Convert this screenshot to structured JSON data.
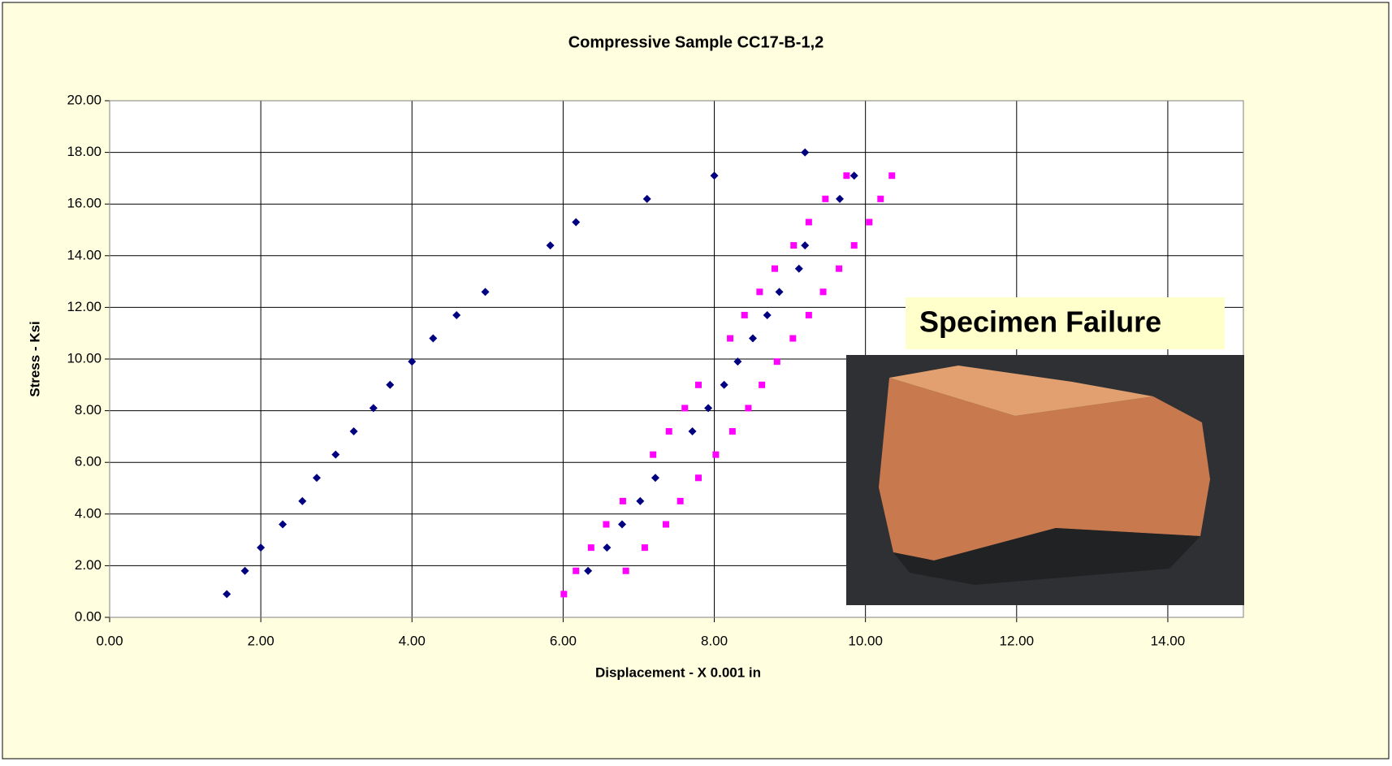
{
  "chart_data": {
    "type": "scatter",
    "title": "Compressive Sample CC17-B-1,2",
    "x_label": "Displacement - X 0.001 in",
    "y_label": "Stress - Ksi",
    "annotation": "Specimen Failure",
    "xlim": [
      0,
      15
    ],
    "ylim": [
      0,
      20
    ],
    "xticks": [
      {
        "value": 0,
        "label": "0.00"
      },
      {
        "value": 2,
        "label": "2.00"
      },
      {
        "value": 4,
        "label": "4.00"
      },
      {
        "value": 6,
        "label": "6.00"
      },
      {
        "value": 8,
        "label": "8.00"
      },
      {
        "value": 10,
        "label": "10.00"
      },
      {
        "value": 12,
        "label": "12.00"
      },
      {
        "value": 14,
        "label": "14.00"
      }
    ],
    "yticks": [
      {
        "value": 0,
        "label": "0.00"
      },
      {
        "value": 2,
        "label": "2.00"
      },
      {
        "value": 4,
        "label": "4.00"
      },
      {
        "value": 6,
        "label": "6.00"
      },
      {
        "value": 8,
        "label": "8.00"
      },
      {
        "value": 10,
        "label": "10.00"
      },
      {
        "value": 12,
        "label": "12.00"
      },
      {
        "value": 14,
        "label": "14.00"
      },
      {
        "value": 16,
        "label": "16.00"
      },
      {
        "value": 18,
        "label": "18.00"
      },
      {
        "value": 20,
        "label": "20.00"
      }
    ],
    "grid": true,
    "series": [
      {
        "color": "#000080",
        "marker": "diamond",
        "x": [
          1.55,
          1.79,
          2.0,
          2.29,
          2.55,
          2.74,
          2.99,
          3.23,
          3.49,
          3.71,
          4.0,
          4.28,
          4.59,
          4.97,
          5.83,
          6.17,
          7.11,
          8.0,
          9.2,
          6.33,
          6.58,
          6.78,
          7.02,
          7.22,
          7.71,
          7.92,
          8.13,
          8.31,
          8.51,
          8.7,
          8.86,
          9.12,
          9.2,
          9.66,
          9.85
        ],
        "values": [
          0.9,
          1.8,
          2.7,
          3.6,
          4.5,
          5.4,
          6.3,
          7.2,
          8.1,
          9.0,
          9.9,
          10.8,
          11.7,
          12.6,
          14.4,
          15.3,
          16.2,
          17.1,
          18.0,
          1.8,
          2.7,
          3.6,
          4.5,
          5.4,
          7.2,
          8.1,
          9.0,
          9.9,
          10.8,
          11.7,
          12.6,
          13.5,
          14.4,
          16.2,
          17.1
        ]
      },
      {
        "color": "#ff00ff",
        "marker": "square",
        "x": [
          6.01,
          6.17,
          6.37,
          6.57,
          6.79,
          6.83,
          7.08,
          7.36,
          7.55,
          7.79,
          7.19,
          7.4,
          7.61,
          7.79,
          8.02,
          8.24,
          8.45,
          8.63,
          8.83,
          9.04,
          8.21,
          8.4,
          8.6,
          8.8,
          9.05,
          9.25,
          9.47,
          9.75,
          9.25,
          9.44,
          9.65,
          9.85,
          10.05,
          10.2,
          10.35
        ],
        "values": [
          0.9,
          1.8,
          2.7,
          3.6,
          4.5,
          1.8,
          2.7,
          3.6,
          4.5,
          5.4,
          6.3,
          7.2,
          8.1,
          9.0,
          6.3,
          7.2,
          8.1,
          9.0,
          9.9,
          10.8,
          10.8,
          11.7,
          12.6,
          13.5,
          14.4,
          15.3,
          16.2,
          17.1,
          11.7,
          12.6,
          13.5,
          14.4,
          15.3,
          16.2,
          17.1
        ]
      }
    ]
  }
}
